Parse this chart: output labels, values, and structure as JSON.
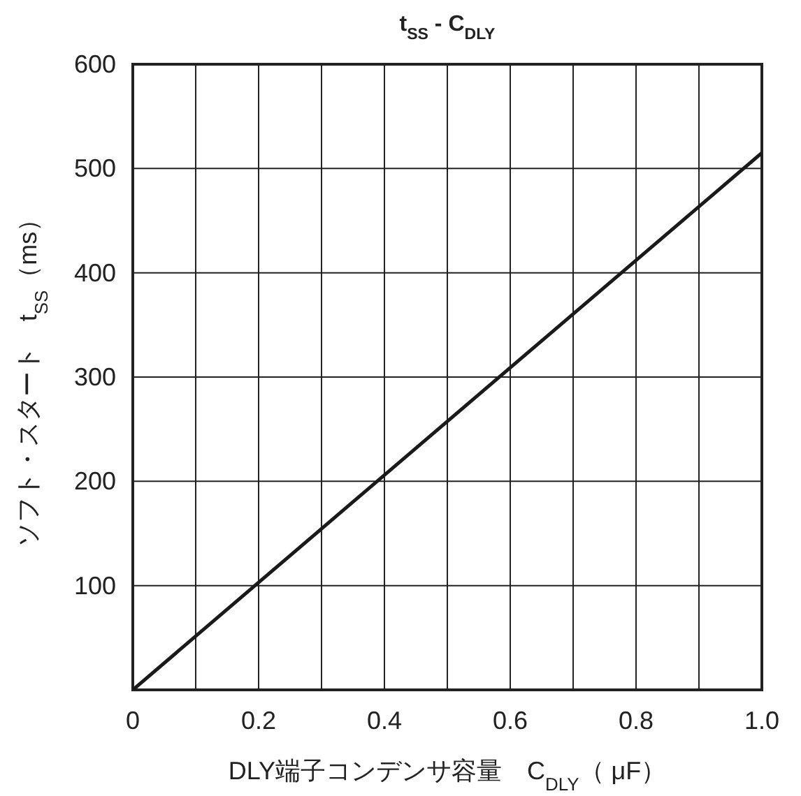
{
  "chart_data": {
    "type": "line",
    "title": "t$_{SS}$ - C$_{DLY}$",
    "xlabel": "DLY端子コンデンサ容量　C$_{DLY}$（ μF）",
    "ylabel": "ソフト・スタート　t$_{SS}$（ms）",
    "x": [
      0,
      1.0
    ],
    "series": [
      {
        "color": "#1a1a1a",
        "values": [
          0,
          515
        ]
      }
    ],
    "xlim": [
      0,
      1.0
    ],
    "ylim": [
      0,
      600
    ],
    "xticks": [
      0,
      {
        "value": 0.1,
        "label": null
      },
      0.2,
      {
        "value": 0.3,
        "label": null
      },
      0.4,
      {
        "value": 0.5,
        "label": null
      },
      0.6,
      {
        "value": 0.7,
        "label": null
      },
      0.8,
      {
        "value": 0.9,
        "label": null
      },
      {
        "value": 1.0,
        "label": "1.0"
      }
    ],
    "yticks": [
      {
        "value": 0,
        "label": null
      },
      100,
      200,
      300,
      400,
      500,
      600
    ],
    "grid": true,
    "marker": "none",
    "line_style": "solid"
  }
}
